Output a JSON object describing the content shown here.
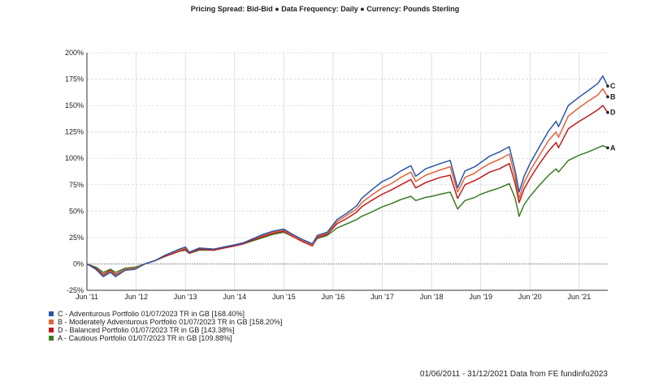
{
  "header": "Pricing Spread: Bid-Bid ● Data Frequency: Daily ● Currency: Pounds Sterling",
  "footer": "01/06/2011 - 31/12/2021 Data from FE fundinfo2023",
  "legend": [
    {
      "label": "C - Adventurous Portfolio 01/07/2023 TR in GB [168.40%]",
      "color": "#2b56a8"
    },
    {
      "label": "B - Moderately Adventurous Portfolio 01/07/2023 TR in GB [158.20%]",
      "color": "#e0633a"
    },
    {
      "label": "D - Balanced Portfolio 01/07/2023 TR in GB [143.38%]",
      "color": "#c11b1b"
    },
    {
      "label": "A - Cautious Portfolio 01/07/2023 TR in GB [109.88%]",
      "color": "#3a7d26"
    }
  ],
  "chart_data": {
    "type": "line",
    "title": "",
    "xlabel": "",
    "ylabel": "",
    "x_tick_labels": [
      "Jun '11",
      "Jun '12",
      "Jun '13",
      "Jun '14",
      "Jun '15",
      "Jun '16",
      "Jun '17",
      "Jun '18",
      "Jun '19",
      "Jun '20",
      "Jun '21"
    ],
    "y_tick_labels": [
      "-25%",
      "0%",
      "25%",
      "50%",
      "75%",
      "100%",
      "125%",
      "150%",
      "175%",
      "200%"
    ],
    "x_range": [
      2011.42,
      2022.0
    ],
    "ylim": [
      -25,
      200
    ],
    "grid": true,
    "series": [
      {
        "name": "C",
        "end_label": "C",
        "color": "#2b56a8",
        "x": [
          2011.42,
          2011.6,
          2011.75,
          2011.9,
          2012.0,
          2012.2,
          2012.4,
          2012.6,
          2012.8,
          2013.0,
          2013.3,
          2013.42,
          2013.5,
          2013.7,
          2014.0,
          2014.2,
          2014.42,
          2014.6,
          2014.8,
          2015.0,
          2015.2,
          2015.42,
          2015.6,
          2015.8,
          2016.0,
          2016.1,
          2016.3,
          2016.5,
          2016.7,
          2016.9,
          2017.0,
          2017.2,
          2017.42,
          2017.6,
          2017.8,
          2018.0,
          2018.1,
          2018.3,
          2018.42,
          2018.6,
          2018.8,
          2018.95,
          2019.1,
          2019.3,
          2019.42,
          2019.6,
          2019.8,
          2020.0,
          2020.12,
          2020.2,
          2020.3,
          2020.42,
          2020.6,
          2020.8,
          2020.95,
          2021.0,
          2021.2,
          2021.42,
          2021.6,
          2021.8,
          2021.9,
          2022.0
        ],
        "values": [
          0,
          -5,
          -12,
          -8,
          -12,
          -6,
          -5,
          0,
          3,
          8,
          14,
          16,
          11,
          15,
          14,
          16,
          18,
          20,
          24,
          28,
          31,
          33,
          28,
          23,
          19,
          27,
          30,
          42,
          48,
          55,
          62,
          70,
          78,
          82,
          88,
          93,
          83,
          90,
          92,
          95,
          98,
          72,
          88,
          92,
          96,
          102,
          106,
          111,
          88,
          68,
          83,
          95,
          110,
          126,
          135,
          130,
          150,
          158,
          164,
          171,
          178,
          168.4
        ]
      },
      {
        "name": "B",
        "end_label": "B",
        "color": "#e0633a",
        "x": [
          2011.42,
          2011.6,
          2011.75,
          2011.9,
          2012.0,
          2012.2,
          2012.4,
          2012.6,
          2012.8,
          2013.0,
          2013.3,
          2013.42,
          2013.5,
          2013.7,
          2014.0,
          2014.2,
          2014.42,
          2014.6,
          2014.8,
          2015.0,
          2015.2,
          2015.42,
          2015.6,
          2015.8,
          2016.0,
          2016.1,
          2016.3,
          2016.5,
          2016.7,
          2016.9,
          2017.0,
          2017.2,
          2017.42,
          2017.6,
          2017.8,
          2018.0,
          2018.1,
          2018.3,
          2018.42,
          2018.6,
          2018.8,
          2018.95,
          2019.1,
          2019.3,
          2019.42,
          2019.6,
          2019.8,
          2020.0,
          2020.12,
          2020.2,
          2020.3,
          2020.42,
          2020.6,
          2020.8,
          2020.95,
          2021.0,
          2021.2,
          2021.42,
          2021.6,
          2021.8,
          2021.9,
          2022.0
        ],
        "values": [
          0,
          -5,
          -11,
          -7,
          -11,
          -5,
          -4,
          0,
          3,
          8,
          13,
          15,
          11,
          15,
          14,
          16,
          18,
          20,
          24,
          27,
          30,
          32,
          27,
          22,
          18,
          26,
          29,
          40,
          46,
          52,
          58,
          65,
          72,
          76,
          82,
          87,
          78,
          84,
          86,
          89,
          92,
          68,
          82,
          86,
          90,
          95,
          99,
          104,
          82,
          62,
          77,
          88,
          102,
          117,
          125,
          120,
          140,
          148,
          154,
          160,
          166,
          158.2
        ]
      },
      {
        "name": "D",
        "end_label": "D",
        "color": "#c11b1b",
        "x": [
          2011.42,
          2011.6,
          2011.75,
          2011.9,
          2012.0,
          2012.2,
          2012.4,
          2012.6,
          2012.8,
          2013.0,
          2013.3,
          2013.42,
          2013.5,
          2013.7,
          2014.0,
          2014.2,
          2014.42,
          2014.6,
          2014.8,
          2015.0,
          2015.2,
          2015.42,
          2015.6,
          2015.8,
          2016.0,
          2016.1,
          2016.3,
          2016.5,
          2016.7,
          2016.9,
          2017.0,
          2017.2,
          2017.42,
          2017.6,
          2017.8,
          2018.0,
          2018.1,
          2018.3,
          2018.42,
          2018.6,
          2018.8,
          2018.95,
          2019.1,
          2019.3,
          2019.42,
          2019.6,
          2019.8,
          2020.0,
          2020.12,
          2020.2,
          2020.3,
          2020.42,
          2020.6,
          2020.8,
          2020.95,
          2021.0,
          2021.2,
          2021.42,
          2021.6,
          2021.8,
          2021.9,
          2022.0
        ],
        "values": [
          0,
          -4,
          -10,
          -6,
          -10,
          -5,
          -4,
          0,
          3,
          7,
          12,
          14,
          10,
          14,
          13,
          15,
          17,
          19,
          23,
          26,
          29,
          31,
          26,
          21,
          17,
          25,
          28,
          38,
          43,
          49,
          54,
          60,
          66,
          70,
          75,
          80,
          72,
          77,
          79,
          82,
          84,
          62,
          75,
          79,
          82,
          87,
          90,
          95,
          76,
          58,
          71,
          81,
          94,
          107,
          115,
          110,
          128,
          135,
          140,
          146,
          150,
          143.4
        ]
      },
      {
        "name": "A",
        "end_label": "A",
        "color": "#3a7d26",
        "x": [
          2011.42,
          2011.6,
          2011.75,
          2011.9,
          2012.0,
          2012.2,
          2012.4,
          2012.6,
          2012.8,
          2013.0,
          2013.3,
          2013.42,
          2013.5,
          2013.7,
          2014.0,
          2014.2,
          2014.42,
          2014.6,
          2014.8,
          2015.0,
          2015.2,
          2015.42,
          2015.6,
          2015.8,
          2016.0,
          2016.1,
          2016.3,
          2016.5,
          2016.7,
          2016.9,
          2017.0,
          2017.2,
          2017.42,
          2017.6,
          2017.8,
          2018.0,
          2018.1,
          2018.3,
          2018.42,
          2018.6,
          2018.8,
          2018.95,
          2019.1,
          2019.3,
          2019.42,
          2019.6,
          2019.8,
          2020.0,
          2020.12,
          2020.2,
          2020.3,
          2020.42,
          2020.6,
          2020.8,
          2020.95,
          2021.0,
          2021.2,
          2021.42,
          2021.6,
          2021.8,
          2021.9,
          2022.0
        ],
        "values": [
          0,
          -3,
          -8,
          -5,
          -8,
          -4,
          -3,
          0,
          3,
          7,
          12,
          13,
          10,
          13,
          13,
          15,
          17,
          19,
          22,
          25,
          28,
          30,
          26,
          22,
          18,
          24,
          27,
          34,
          38,
          42,
          45,
          49,
          54,
          57,
          61,
          64,
          60,
          63,
          64,
          66,
          68,
          52,
          60,
          63,
          66,
          69,
          72,
          76,
          62,
          45,
          56,
          64,
          74,
          84,
          90,
          87,
          98,
          103,
          106,
          110,
          112,
          109.9
        ]
      }
    ]
  }
}
